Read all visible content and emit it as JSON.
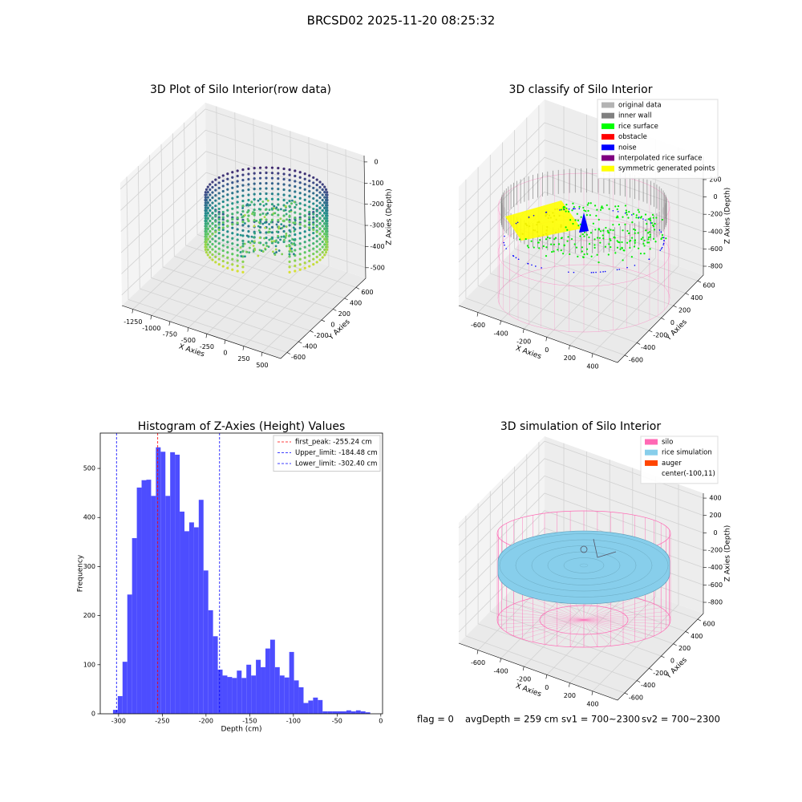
{
  "title": "BRCSD02 2025-11-20 08:25:32",
  "footer": [
    "flag = 0",
    "avgDepth = 259 cm",
    "sv1 = 700~2300",
    "sv2 = 700~2300"
  ],
  "chart_data": [
    {
      "type": "scatter3d",
      "title": "3D Plot of Silo Interior(row data)",
      "xlabel": "X Axies",
      "ylabel": "Y Axies",
      "zlabel": "Z Axies (Depth)",
      "xlim": [
        -1400,
        750
      ],
      "xticks": [
        -1250,
        -1000,
        -750,
        -500,
        -250,
        0,
        250,
        500
      ],
      "ylim": [
        -711,
        768
      ],
      "yticks": [
        -600,
        -400,
        -200,
        0,
        200,
        400,
        600
      ],
      "zlim": [
        -550,
        30
      ],
      "zticks": [
        0,
        -100,
        -200,
        -300,
        -400,
        -500
      ]
    },
    {
      "type": "scatter3d",
      "title": "3D classify of Silo Interior",
      "xlabel": "X Axies",
      "ylabel": "Y Axies",
      "zlabel": "Z Axies (Depth)",
      "xlim": [
        -768,
        617
      ],
      "xticks": [
        -600,
        -400,
        -200,
        0,
        200,
        400
      ],
      "ylim": [
        -718,
        693
      ],
      "yticks": [
        -600,
        -400,
        -200,
        0,
        200,
        400,
        600
      ],
      "zlim": [
        -902,
        468
      ],
      "zticks": [
        200,
        0,
        -200,
        -400,
        -600,
        -800
      ],
      "legend": [
        {
          "name": "original data",
          "color": "#b3b3b3"
        },
        {
          "name": "inner wall",
          "color": "#808080"
        },
        {
          "name": "rice surface",
          "color": "#00ff00"
        },
        {
          "name": "obstacle",
          "color": "#ff0000"
        },
        {
          "name": "noise",
          "color": "#0000ff"
        },
        {
          "name": "interpolated rice surface",
          "color": "#800080"
        },
        {
          "name": "symmetric generated points",
          "color": "#ffff00"
        }
      ]
    },
    {
      "type": "histogram",
      "title": "Histogram of Z-Axies (Height) Values",
      "xlabel": "Depth (cm)",
      "ylabel": "Frequency",
      "color": "#4d4dff",
      "bins": [
        -306.4,
        -300.95,
        -295.5,
        -290.05,
        -284.6,
        -279.15,
        -273.7,
        -268.25,
        -262.8,
        -257.35,
        -251.9,
        -246.45,
        -241,
        -235.55,
        -230.1,
        -224.65,
        -219.2,
        -213.75,
        -208.3,
        -202.85,
        -197.4,
        -191.95,
        -186.5,
        -181.05,
        -175.6,
        -170.15,
        -164.7,
        -159.25,
        -153.8,
        -148.35,
        -142.9,
        -137.45,
        -132,
        -126.55,
        -121.1,
        -115.65,
        -110.2,
        -104.75,
        -99.3,
        -93.85,
        -88.4,
        -82.95,
        -77.5,
        -72.05,
        -66.6,
        -61.15,
        -55.7,
        -50.25,
        -44.8,
        -39.35,
        -33.9,
        -28.45,
        -23,
        -17.55,
        -12.1
      ],
      "counts": [
        8,
        36,
        106,
        243,
        358,
        461,
        476,
        477,
        444,
        543,
        534,
        444,
        533,
        528,
        412,
        372,
        390,
        380,
        436,
        292,
        211,
        158,
        90,
        78,
        75,
        73,
        88,
        73,
        100,
        78,
        110,
        95,
        133,
        151,
        95,
        78,
        74,
        126,
        68,
        54,
        22,
        27,
        33,
        28,
        5,
        5,
        5,
        5,
        5,
        7,
        5,
        7,
        5,
        3
      ],
      "xlim": [
        -321,
        2
      ],
      "xticks": [
        -300,
        -250,
        -200,
        -150,
        -100,
        -50,
        0
      ],
      "ylim": [
        0,
        572
      ],
      "yticks": [
        0,
        100,
        200,
        300,
        400,
        500
      ],
      "legend": "upper right",
      "lines": [
        {
          "name": "first_peak: -255.24 cm",
          "value": -255.24,
          "color": "#ff0000"
        },
        {
          "name": "Upper_limit: -184.48 cm",
          "value": -184.48,
          "color": "#0000ff"
        },
        {
          "name": "Lower_limit: -302.40 cm",
          "value": -302.4,
          "color": "#0000ff"
        }
      ]
    },
    {
      "type": "scatter3d",
      "title": "3D simulation of Silo Interior",
      "xlabel": "X Axies",
      "ylabel": "Y Axies",
      "zlabel": "Z Axies (Depth)",
      "xlim": [
        -768,
        617
      ],
      "xticks": [
        -600,
        -400,
        -200,
        0,
        200,
        400
      ],
      "ylim": [
        -718,
        693
      ],
      "yticks": [
        -600,
        -400,
        -200,
        0,
        200,
        400,
        600
      ],
      "zlim": [
        -929,
        456
      ],
      "zticks": [
        400,
        200,
        0,
        -200,
        -400,
        -600,
        -800
      ],
      "legend": [
        {
          "name": "silo",
          "color": "#ff69b4"
        },
        {
          "name": "rice simulation",
          "color": "#87ceeb"
        },
        {
          "name": "auger",
          "color": "#ff4500"
        },
        {
          "name": "center(-100,11)"
        }
      ]
    }
  ]
}
